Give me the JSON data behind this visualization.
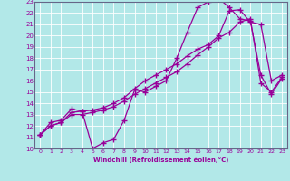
{
  "background_color": "#b2e8e8",
  "line_color": "#990099",
  "xlabel": "Windchill (Refroidissement éolien,°C)",
  "xlim": [
    -0.5,
    23.5
  ],
  "ylim": [
    10,
    23
  ],
  "xticks": [
    0,
    1,
    2,
    3,
    4,
    5,
    6,
    7,
    8,
    9,
    10,
    11,
    12,
    13,
    14,
    15,
    16,
    17,
    18,
    19,
    20,
    21,
    22,
    23
  ],
  "yticks": [
    10,
    11,
    12,
    13,
    14,
    15,
    16,
    17,
    18,
    19,
    20,
    21,
    22,
    23
  ],
  "curve1_x": [
    0,
    1,
    2,
    3,
    4,
    5,
    6,
    7,
    8,
    9,
    10,
    11,
    12,
    13,
    14,
    15,
    16,
    17,
    18,
    19,
    20,
    21,
    22,
    23
  ],
  "curve1_y": [
    11.2,
    12.3,
    12.5,
    13.5,
    13.3,
    10.0,
    10.5,
    10.8,
    12.5,
    15.2,
    15.0,
    15.5,
    16.0,
    18.0,
    20.3,
    22.5,
    23.0,
    23.3,
    22.5,
    21.5,
    21.3,
    16.5,
    14.8,
    16.2
  ],
  "curve2_x": [
    0,
    1,
    2,
    3,
    4,
    5,
    6,
    7,
    8,
    9,
    10,
    11,
    12,
    13,
    14,
    15,
    16,
    17,
    18,
    19,
    20,
    21,
    22,
    23
  ],
  "curve2_y": [
    11.2,
    12.0,
    12.3,
    13.2,
    13.3,
    13.4,
    13.6,
    14.0,
    14.5,
    15.3,
    16.0,
    16.5,
    17.0,
    17.5,
    18.2,
    18.8,
    19.2,
    20.0,
    22.2,
    22.3,
    21.2,
    21.0,
    16.0,
    16.5
  ],
  "curve3_x": [
    0,
    1,
    2,
    3,
    4,
    5,
    6,
    7,
    8,
    9,
    10,
    11,
    12,
    13,
    14,
    15,
    16,
    17,
    18,
    19,
    20,
    21,
    22,
    23
  ],
  "curve3_y": [
    11.2,
    12.0,
    12.3,
    13.0,
    13.0,
    13.2,
    13.4,
    13.7,
    14.2,
    14.8,
    15.3,
    15.8,
    16.3,
    16.8,
    17.5,
    18.3,
    19.0,
    19.8,
    20.3,
    21.2,
    21.5,
    15.8,
    15.0,
    16.3
  ]
}
